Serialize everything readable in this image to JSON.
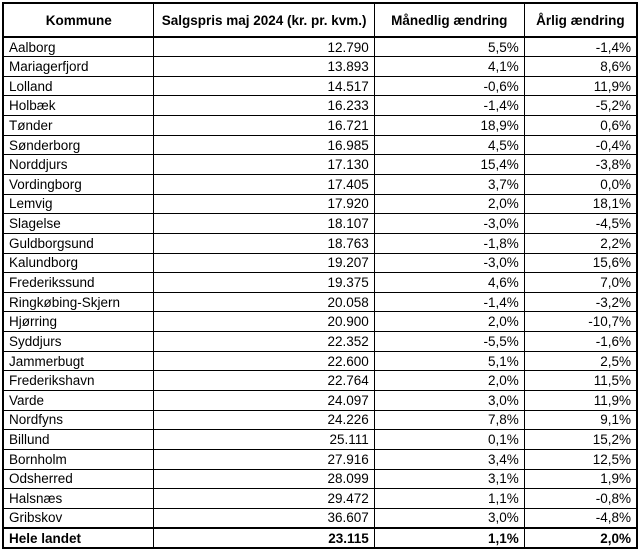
{
  "style": {
    "border_color": "#000000",
    "background_color": "#ffffff",
    "text_color": "#000000"
  },
  "chart_data": {
    "type": "table",
    "title": "",
    "columns": [
      "Kommune",
      "Salgspris maj 2024 (kr. pr. kvm.)",
      "Månedlig ændring",
      "Årlig ændring"
    ],
    "rows": [
      [
        "Aalborg",
        "12.790",
        "5,5%",
        "-1,4%"
      ],
      [
        "Mariagerfjord",
        "13.893",
        "4,1%",
        "8,6%"
      ],
      [
        "Lolland",
        "14.517",
        "-0,6%",
        "11,9%"
      ],
      [
        "Holbæk",
        "16.233",
        "-1,4%",
        "-5,2%"
      ],
      [
        "Tønder",
        "16.721",
        "18,9%",
        "0,6%"
      ],
      [
        "Sønderborg",
        "16.985",
        "4,5%",
        "-0,4%"
      ],
      [
        "Norddjurs",
        "17.130",
        "15,4%",
        "-3,8%"
      ],
      [
        "Vordingborg",
        "17.405",
        "3,7%",
        "0,0%"
      ],
      [
        "Lemvig",
        "17.920",
        "2,0%",
        "18,1%"
      ],
      [
        "Slagelse",
        "18.107",
        "-3,0%",
        "-4,5%"
      ],
      [
        "Guldborgsund",
        "18.763",
        "-1,8%",
        "2,2%"
      ],
      [
        "Kalundborg",
        "19.207",
        "-3,0%",
        "15,6%"
      ],
      [
        "Frederikssund",
        "19.375",
        "4,6%",
        "7,0%"
      ],
      [
        "Ringkøbing-Skjern",
        "20.058",
        "-1,4%",
        "-3,2%"
      ],
      [
        "Hjørring",
        "20.900",
        "2,0%",
        "-10,7%"
      ],
      [
        "Syddjurs",
        "22.352",
        "-5,5%",
        "-1,6%"
      ],
      [
        "Jammerbugt",
        "22.600",
        "5,1%",
        "2,5%"
      ],
      [
        "Frederikshavn",
        "22.764",
        "2,0%",
        "11,5%"
      ],
      [
        "Varde",
        "24.097",
        "3,0%",
        "11,9%"
      ],
      [
        "Nordfyns",
        "24.226",
        "7,8%",
        "9,1%"
      ],
      [
        "Billund",
        "25.111",
        "0,1%",
        "15,2%"
      ],
      [
        "Bornholm",
        "27.916",
        "3,4%",
        "12,5%"
      ],
      [
        "Odsherred",
        "28.099",
        "3,1%",
        "1,9%"
      ],
      [
        "Halsnæs",
        "29.472",
        "1,1%",
        "-0,8%"
      ],
      [
        "Gribskov",
        "36.607",
        "3,0%",
        "-4,8%"
      ]
    ],
    "summary_row": [
      "Hele landet",
      "23.115",
      "1,1%",
      "2,0%"
    ]
  }
}
